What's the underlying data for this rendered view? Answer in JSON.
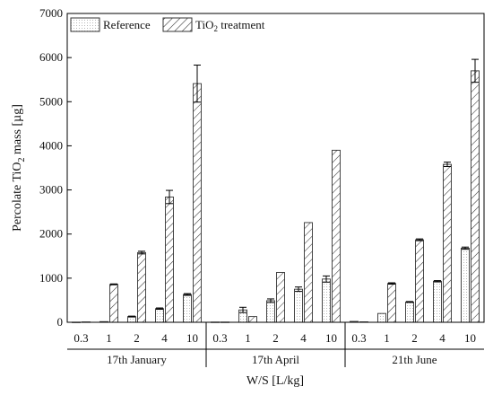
{
  "chart_data": {
    "type": "bar",
    "ylabel_prefix": "Percolate TiO",
    "ylabel_sub": "2",
    "ylabel_suffix": " mass [µg]",
    "xlabel": "W/S [L/kg]",
    "ylim": [
      0,
      7000
    ],
    "yticks": [
      0,
      1000,
      2000,
      3000,
      4000,
      5000,
      6000,
      7000
    ],
    "grid": false,
    "legend_position": "top-left",
    "groups": [
      {
        "label": "17th January",
        "categories": [
          "0.3",
          "1",
          "2",
          "4",
          "10"
        ],
        "series": [
          {
            "name": "Reference",
            "values": [
              3,
              15,
              130,
              310,
              630
            ],
            "errors": [
              0,
              0,
              10,
              15,
              20
            ]
          },
          {
            "name": "TiO2 treatment",
            "values": [
              8,
              860,
              1580,
              2840,
              5410
            ],
            "errors": [
              0,
              10,
              30,
              150,
              420
            ]
          }
        ]
      },
      {
        "label": "17th April",
        "categories": [
          "0.3",
          "1",
          "2",
          "4",
          "10"
        ],
        "series": [
          {
            "name": "Reference",
            "values": [
              5,
              280,
              490,
              750,
              980
            ],
            "errors": [
              0,
              60,
              40,
              50,
              70
            ]
          },
          {
            "name": "TiO2 treatment",
            "values": [
              5,
              130,
              1130,
              2260,
              3900
            ],
            "errors": [
              0,
              0,
              0,
              0,
              0
            ]
          }
        ]
      },
      {
        "label": "21th June",
        "categories": [
          "0.3",
          "1",
          "2",
          "4",
          "10"
        ],
        "series": [
          {
            "name": "Reference",
            "values": [
              20,
              200,
              460,
              930,
              1680
            ],
            "errors": [
              0,
              0,
              10,
              15,
              25
            ]
          },
          {
            "name": "TiO2 treatment",
            "values": [
              10,
              880,
              1870,
              3580,
              5700
            ],
            "errors": [
              0,
              15,
              20,
              50,
              260
            ]
          }
        ]
      }
    ],
    "legend": [
      {
        "label": "Reference",
        "style": "dotted-fill"
      },
      {
        "label_prefix": "TiO",
        "label_sub": "2",
        "label_suffix": " treatment",
        "style": "hatched-fill"
      }
    ]
  }
}
